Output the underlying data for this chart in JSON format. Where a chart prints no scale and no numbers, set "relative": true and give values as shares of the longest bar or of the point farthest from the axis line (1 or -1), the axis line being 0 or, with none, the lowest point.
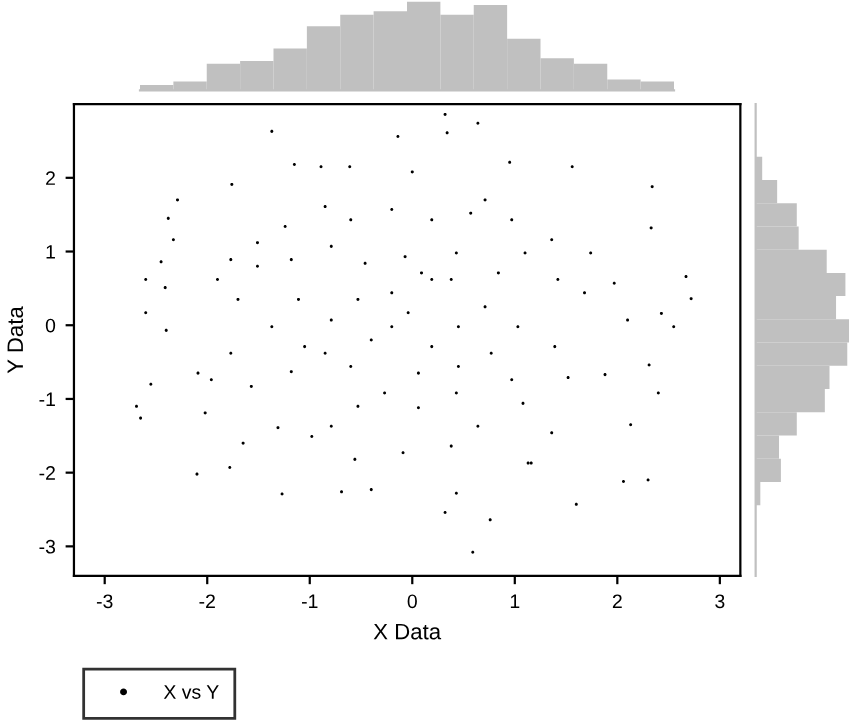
{
  "chart_data": [
    {
      "type": "scatter",
      "xlabel": "X Data",
      "ylabel": "Y Data",
      "xlim": [
        -3.3,
        3.2
      ],
      "ylim": [
        -3.4,
        3.0
      ],
      "xticks": [
        -3,
        -2,
        -1,
        0,
        1,
        2,
        3
      ],
      "yticks": [
        -3,
        -2,
        -1,
        0,
        1,
        2
      ],
      "grid": false,
      "legend": "bottom left",
      "marker": "circle",
      "series": [
        {
          "name": "X vs Y",
          "color": "#000000",
          "x": [
            0.32,
            0.64,
            -1.37,
            -0.14,
            0.34,
            -1.15,
            -0.89,
            -0.61,
            0.95,
            1.56,
            -1.76,
            0.0,
            2.34,
            -2.29,
            -2.38,
            -2.33,
            2.33,
            -2.45,
            -2.6,
            -2.41,
            -2.6,
            -2.4,
            -2.55,
            -2.69,
            -2.65,
            -2.1,
            -1.78,
            -1.27,
            -0.69,
            -0.4,
            0.32,
            0.43,
            0.59,
            0.76,
            1.13,
            1.6,
            2.06,
            2.3,
            2.13,
            2.4,
            2.31,
            2.55,
            2.72,
            2.67,
            2.43,
            1.97,
            2.1,
            1.88,
            1.39,
            1.52,
            1.36,
            1.08,
            0.64,
            0.43,
            0.06,
            -0.09,
            -0.27,
            -0.56,
            -0.79,
            -0.98,
            -1.31,
            -1.65,
            -2.02,
            -1.96,
            -2.09,
            -1.77,
            -1.57,
            -1.18,
            -0.85,
            -0.6,
            -0.4,
            -0.2,
            -0.04,
            0.19,
            0.45,
            0.77,
            1.03,
            0.71,
            0.38,
            0.09,
            -0.2,
            -0.53,
            -0.79,
            -1.11,
            -1.37,
            -1.7,
            -1.9,
            -1.51,
            -1.18,
            -0.79,
            -0.46,
            -0.07,
            0.43,
            0.84,
            1.1,
            1.42,
            1.68,
            1.74,
            1.36,
            0.97,
            0.57,
            0.19,
            -0.2,
            -0.6,
            -0.85,
            -1.24,
            -1.51,
            -1.77,
            0.71,
            0.19,
            0.45,
            0.97,
            0.06,
            -0.53,
            1.16,
            0.38,
            -1.05
          ],
          "values": [
            2.86,
            2.74,
            2.63,
            2.56,
            2.61,
            2.18,
            2.15,
            2.15,
            2.21,
            2.15,
            1.91,
            2.08,
            1.88,
            1.7,
            1.45,
            1.16,
            1.32,
            0.86,
            0.62,
            0.51,
            0.17,
            -0.07,
            -0.8,
            -1.1,
            -1.26,
            -2.02,
            -1.93,
            -2.29,
            -2.26,
            -2.23,
            -2.54,
            -2.28,
            -3.08,
            -2.64,
            -1.87,
            -2.43,
            -2.12,
            -2.1,
            -1.35,
            -0.92,
            -0.54,
            -0.02,
            0.36,
            0.66,
            0.16,
            0.57,
            0.07,
            -0.67,
            -0.29,
            -0.71,
            -1.46,
            -1.06,
            -1.37,
            -0.92,
            -1.12,
            -1.73,
            -0.92,
            -1.82,
            -1.37,
            -1.51,
            -1.39,
            -1.6,
            -1.19,
            -0.74,
            -0.65,
            -0.38,
            -0.83,
            -0.63,
            -0.38,
            -0.56,
            -0.2,
            -0.02,
            0.17,
            -0.29,
            -0.56,
            -0.38,
            -0.02,
            0.25,
            0.62,
            0.71,
            0.44,
            0.35,
            0.07,
            0.35,
            -0.02,
            0.35,
            0.62,
            0.8,
            0.89,
            1.07,
            0.84,
            0.93,
            0.98,
            0.71,
            0.98,
            0.62,
            0.44,
            0.98,
            1.16,
            1.43,
            1.52,
            1.43,
            1.57,
            1.43,
            1.61,
            1.34,
            1.12,
            0.89,
            1.7,
            0.62,
            -0.02,
            -0.74,
            -0.65,
            -1.1,
            -1.87,
            -1.64,
            -0.29
          ]
        }
      ]
    },
    {
      "type": "bar",
      "relative": true,
      "color": "#c0c0c0",
      "categories": [
        null,
        null,
        null,
        null,
        null,
        null,
        null,
        null,
        null,
        null,
        null,
        null,
        null,
        null,
        null,
        null
      ],
      "values": [
        0.06,
        0.1,
        0.3,
        0.33,
        0.47,
        0.72,
        0.85,
        0.89,
        1,
        0.85,
        0.96,
        0.58,
        0.36,
        0.3,
        0.12,
        0.1
      ]
    },
    {
      "type": "bar",
      "relative": true,
      "orientation": "horizontal",
      "color": "#c0c0c0",
      "categories": [
        null,
        null,
        null,
        null,
        null,
        null,
        null,
        null,
        null,
        null,
        null,
        null,
        null,
        null,
        null
      ],
      "values": [
        0.07,
        0.23,
        0.44,
        0.46,
        0.76,
        0.96,
        0.86,
        1,
        0.98,
        0.79,
        0.74,
        0.44,
        0.25,
        0.27,
        0.05
      ]
    }
  ]
}
